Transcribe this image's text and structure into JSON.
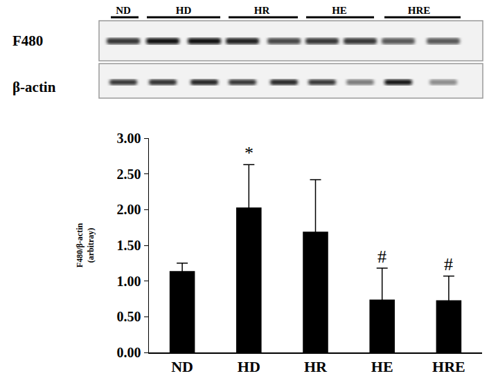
{
  "chart_data": {
    "type": "bar",
    "categories": [
      "ND",
      "HD",
      "HR",
      "HE",
      "HRE"
    ],
    "values": [
      1.14,
      2.03,
      1.69,
      0.74,
      0.73
    ],
    "errors": [
      0.11,
      0.6,
      0.73,
      0.44,
      0.34
    ],
    "color": "#000000",
    "y_label": "F480/β-actin\n(arbitray)",
    "ylim": [
      0,
      3
    ],
    "yticks": [
      {
        "value": 0,
        "label": "0.00"
      },
      {
        "value": 0.5,
        "label": "0.50"
      },
      {
        "value": 1,
        "label": "1.00"
      },
      {
        "value": 1.5,
        "label": "1.50"
      },
      {
        "value": 2,
        "label": "2.00"
      },
      {
        "value": 2.5,
        "label": "2.50"
      },
      {
        "value": 3,
        "label": "3.00"
      }
    ],
    "grid": false,
    "annotations": [
      {
        "text": "*",
        "category": "HD"
      },
      {
        "text": "#",
        "category": "HE"
      },
      {
        "text": "#",
        "category": "HRE"
      }
    ],
    "row_labels": [
      "F480",
      "β-actin"
    ]
  }
}
